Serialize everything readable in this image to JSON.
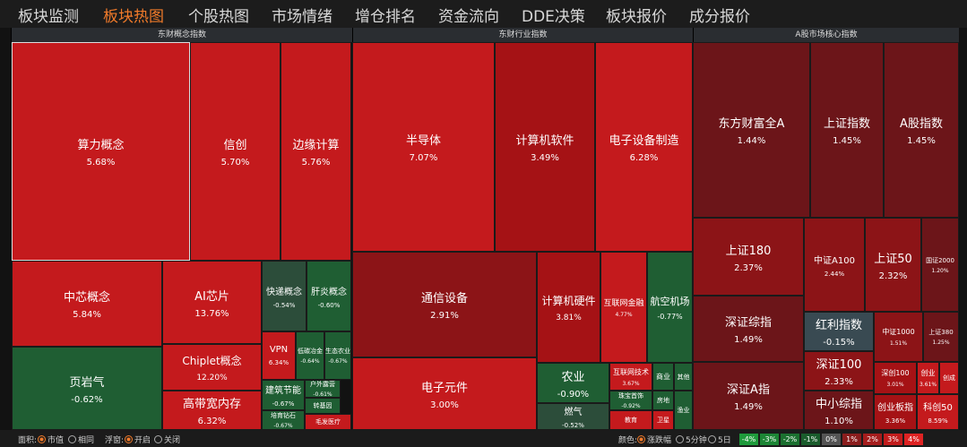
{
  "tabs": [
    "板块监测",
    "板块热图",
    "个股热图",
    "市场情绪",
    "增仓排名",
    "资金流向",
    "DDE决策",
    "板块报价",
    "成分报价"
  ],
  "active_tab": 1,
  "panels": [
    {
      "title": "东财概念指数",
      "tiles": [
        {
          "label": "算力概念",
          "change": "5.68%"
        },
        {
          "label": "信创",
          "change": "5.70%"
        },
        {
          "label": "边缘计算",
          "change": "5.76%"
        },
        {
          "label": "中芯概念",
          "change": "5.84%"
        },
        {
          "label": "AI芯片",
          "change": "13.76%"
        },
        {
          "label": "页岩气",
          "change": "-0.62%"
        },
        {
          "label": "Chiplet概念",
          "change": "12.20%"
        },
        {
          "label": "高带宽内存",
          "change": "6.32%"
        },
        {
          "label": "快递概念",
          "change": "-0.54%"
        },
        {
          "label": "肝炎概念",
          "change": "-0.60%"
        },
        {
          "label": "VPN",
          "change": "6.34%"
        },
        {
          "label": "低碳冶金",
          "change": "-0.64%"
        },
        {
          "label": "生态农业",
          "change": "-0.67%"
        },
        {
          "label": "建筑节能",
          "change": "-0.67%"
        },
        {
          "label": "培育钻石",
          "change": "-0.67%"
        },
        {
          "label": "户外露营",
          "change": "-0.61%"
        },
        {
          "label": "转基因"
        },
        {
          "label": "毛发医疗"
        }
      ]
    },
    {
      "title": "东财行业指数",
      "tiles": [
        {
          "label": "半导体",
          "change": "7.07%"
        },
        {
          "label": "计算机软件",
          "change": "3.49%"
        },
        {
          "label": "电子设备制造",
          "change": "6.28%"
        },
        {
          "label": "通信设备",
          "change": "2.91%"
        },
        {
          "label": "电子元件",
          "change": "3.00%"
        },
        {
          "label": "计算机硬件",
          "change": "3.81%"
        },
        {
          "label": "互联网金融",
          "change": "4.77%"
        },
        {
          "label": "航空机场",
          "change": "-0.77%"
        },
        {
          "label": "农业",
          "change": "-0.90%"
        },
        {
          "label": "燃气",
          "change": "-0.52%"
        },
        {
          "label": "互联网技术",
          "change": "3.67%"
        },
        {
          "label": "珠宝首饰",
          "change": "-0.92%"
        },
        {
          "label": "教育"
        },
        {
          "label": "商业"
        },
        {
          "label": "其他"
        },
        {
          "label": "房地"
        },
        {
          "label": "卫星"
        },
        {
          "label": "渔业"
        }
      ]
    },
    {
      "title": "A股市场核心指数",
      "tiles": [
        {
          "label": "东方财富全A",
          "change": "1.44%"
        },
        {
          "label": "上证指数",
          "change": "1.45%"
        },
        {
          "label": "A股指数",
          "change": "1.45%"
        },
        {
          "label": "上证180",
          "change": "2.37%"
        },
        {
          "label": "中证A100",
          "change": "2.44%"
        },
        {
          "label": "上证50",
          "change": "2.32%"
        },
        {
          "label": "国证2000",
          "change": "1.20%"
        },
        {
          "label": "深证综指",
          "change": "1.49%"
        },
        {
          "label": "深证A指",
          "change": "1.49%"
        },
        {
          "label": "红利指数",
          "change": "-0.15%"
        },
        {
          "label": "深证100",
          "change": "2.33%"
        },
        {
          "label": "中小综指",
          "change": "1.10%"
        },
        {
          "label": "中证1000",
          "change": "1.51%"
        },
        {
          "label": "上证380",
          "change": "1.25%"
        },
        {
          "label": "深创100",
          "change": "3.01%"
        },
        {
          "label": "创业板指",
          "change": "3.36%"
        },
        {
          "label": "创业",
          "change": "3.61%"
        },
        {
          "label": "创成"
        },
        {
          "label": "科创50",
          "change": "8.59%"
        }
      ]
    }
  ],
  "footer": {
    "area_label": "面积:",
    "area_options": [
      "市值",
      "相同"
    ],
    "popup_label": "浮窗:",
    "popup_options": [
      "开启",
      "关闭"
    ],
    "color_label": "颜色:",
    "color_options": [
      "涨跌幅",
      "5分钟",
      "5日"
    ],
    "scale": [
      "-4%",
      "-3%",
      "-2%",
      "-1%",
      "0%",
      "1%",
      "2%",
      "3%",
      "4%"
    ]
  }
}
